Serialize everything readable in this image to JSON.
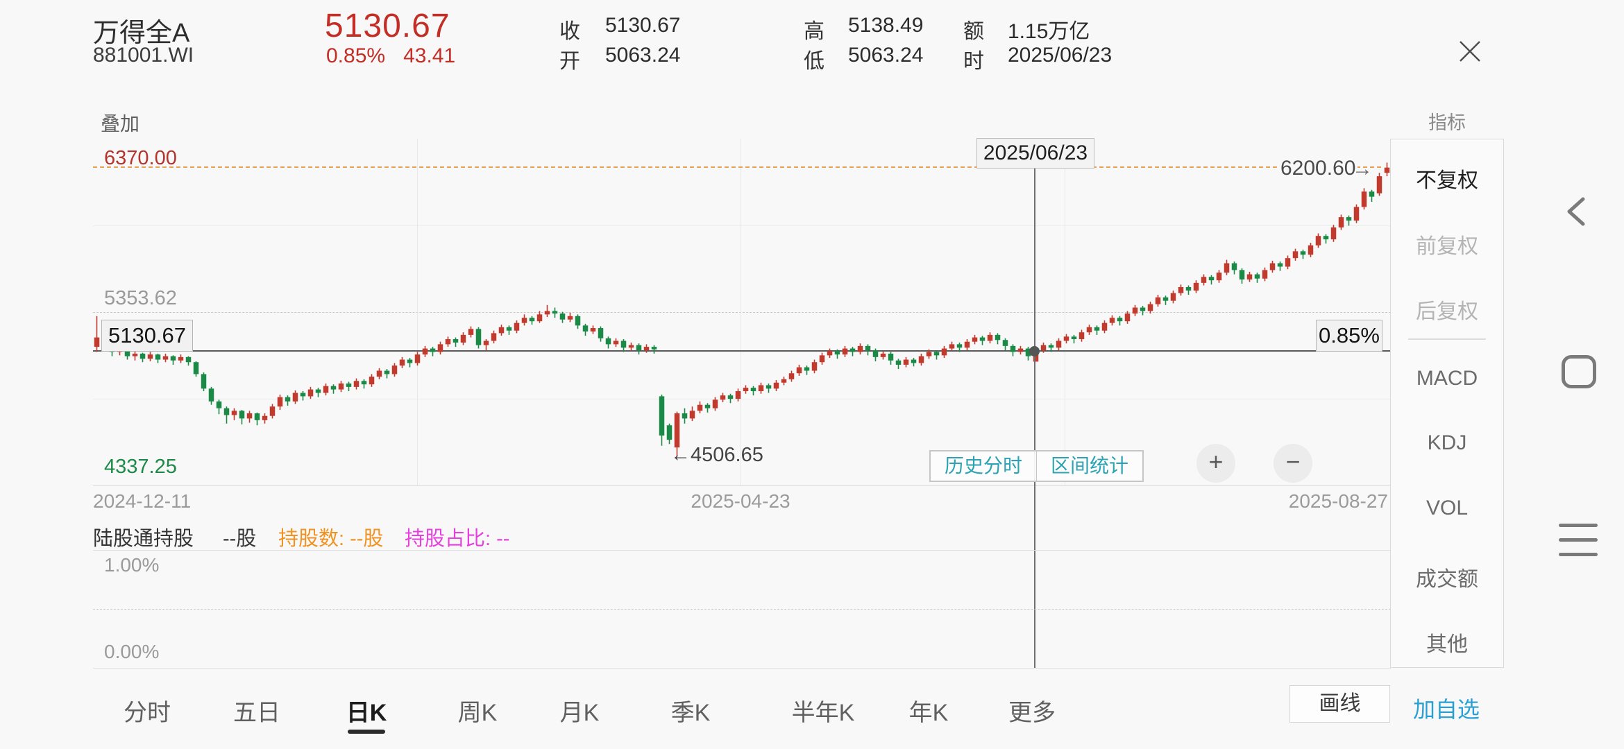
{
  "header": {
    "title": "万得全A",
    "code": "881001.WI",
    "price": "5130.67",
    "change_pct": "0.85%",
    "change_abs": "43.41",
    "stats": [
      {
        "label": "收",
        "value": "5130.67"
      },
      {
        "label": "开",
        "value": "5063.24"
      },
      {
        "label": "高",
        "value": "5138.49"
      },
      {
        "label": "低",
        "value": "5063.24"
      },
      {
        "label": "额",
        "value": "1.15万亿"
      },
      {
        "label": "时",
        "value": "2025/06/23"
      }
    ],
    "close_icon": "close-x"
  },
  "chart": {
    "overlay_button": "叠加",
    "y_axis_top": "6370.00",
    "y_axis_mid": "5353.62",
    "y_axis_bottom": "4337.25",
    "x_dates": [
      "2024-12-11",
      "2025-04-23",
      "2025-08-27"
    ],
    "crosshair_date": "2025/06/23",
    "crosshair_price": "5130.67",
    "crosshair_pct": "0.85%",
    "latest_price": "6200.60",
    "latest_arrow": "→",
    "low_annotation": "←4506.65",
    "history_btn": "历史分时",
    "range_btn": "区间统计",
    "zoom_in": "+",
    "zoom_out": "−"
  },
  "holdings": {
    "name": "陆股通持股",
    "shares": "--股",
    "count": "持股数: --股",
    "ratio": "持股占比: --",
    "y_top": "1.00%",
    "y_bottom": "0.00%"
  },
  "tabs": {
    "items": [
      "分时",
      "五日",
      "日K",
      "周K",
      "月K",
      "季K",
      "半年K",
      "年K",
      "更多"
    ],
    "active": "日K",
    "draw_label": "画线",
    "add_watch_label": "加自选"
  },
  "sidebar": {
    "header": "指标",
    "adjust_items": [
      "不复权",
      "前复权",
      "后复权"
    ],
    "active_adjust": "不复权",
    "indicator_items": [
      "MACD",
      "KDJ",
      "VOL",
      "成交额",
      "其他"
    ]
  },
  "colors": {
    "up": "#c03a2e",
    "down": "#1b8a47",
    "accent_teal": "#2ba3b3",
    "accent_blue": "#2aa0d2",
    "holdings_orange": "#ef9222",
    "holdings_magenta": "#e540dd",
    "latest_line_orange": "#e9a052",
    "price_red": "#c32f27"
  },
  "chart_data": {
    "type": "candlestick",
    "title": "万得全A 881001.WI 日K 不复权",
    "y_axis": {
      "max": 6370.0,
      "mid": 5353.62,
      "min": 4337.25
    },
    "x_labels": [
      "2024-12-11",
      "2025-04-23",
      "2025-08-27"
    ],
    "current_price_line": 5130.67,
    "latest_price_line": 6200.6,
    "low_annotation": {
      "value": 4506.65,
      "candle_index": 76
    },
    "crosshair": {
      "date": "2025/06/23",
      "candle_index": 123,
      "open": 5063.24,
      "high": 5138.49,
      "low": 5063.24,
      "close": 5130.67,
      "change_pct": 0.85,
      "change_abs": 43.41,
      "amount": "1.15万亿"
    },
    "grid": {
      "h_solid": [
        5861.81,
        4845.44
      ],
      "h_dashed": [
        5353.62
      ],
      "v_count": 3
    },
    "legend_position": "none",
    "candles_format": [
      "open",
      "close",
      "low",
      "high"
    ],
    "candles": [
      [
        5150,
        5205,
        5120,
        5330
      ],
      [
        5205,
        5150,
        5130,
        5215
      ],
      [
        5150,
        5120,
        5095,
        5160
      ],
      [
        5120,
        5140,
        5100,
        5155
      ],
      [
        5140,
        5095,
        5075,
        5145
      ],
      [
        5095,
        5110,
        5070,
        5125
      ],
      [
        5110,
        5080,
        5060,
        5115
      ],
      [
        5080,
        5105,
        5065,
        5120
      ],
      [
        5105,
        5075,
        5055,
        5110
      ],
      [
        5075,
        5095,
        5060,
        5110
      ],
      [
        5095,
        5070,
        5045,
        5100
      ],
      [
        5070,
        5090,
        5055,
        5105
      ],
      [
        5090,
        5060,
        5040,
        5095
      ],
      [
        5060,
        4990,
        4975,
        5065
      ],
      [
        4990,
        4905,
        4890,
        5000
      ],
      [
        4905,
        4830,
        4810,
        4915
      ],
      [
        4830,
        4790,
        4755,
        4840
      ],
      [
        4790,
        4750,
        4700,
        4800
      ],
      [
        4750,
        4775,
        4720,
        4790
      ],
      [
        4775,
        4730,
        4695,
        4780
      ],
      [
        4730,
        4760,
        4705,
        4775
      ],
      [
        4760,
        4720,
        4690,
        4765
      ],
      [
        4720,
        4745,
        4700,
        4760
      ],
      [
        4745,
        4800,
        4730,
        4815
      ],
      [
        4800,
        4855,
        4780,
        4870
      ],
      [
        4855,
        4830,
        4805,
        4865
      ],
      [
        4830,
        4880,
        4815,
        4895
      ],
      [
        4880,
        4860,
        4835,
        4890
      ],
      [
        4860,
        4900,
        4845,
        4915
      ],
      [
        4900,
        4880,
        4855,
        4910
      ],
      [
        4880,
        4920,
        4865,
        4935
      ],
      [
        4920,
        4900,
        4875,
        4930
      ],
      [
        4900,
        4935,
        4885,
        4950
      ],
      [
        4935,
        4915,
        4890,
        4945
      ],
      [
        4915,
        4950,
        4900,
        4965
      ],
      [
        4950,
        4930,
        4905,
        4960
      ],
      [
        4930,
        4975,
        4915,
        4990
      ],
      [
        4975,
        5010,
        4960,
        5025
      ],
      [
        5010,
        4990,
        4965,
        5020
      ],
      [
        4990,
        5040,
        4975,
        5055
      ],
      [
        5040,
        5075,
        5025,
        5090
      ],
      [
        5075,
        5055,
        5030,
        5085
      ],
      [
        5055,
        5105,
        5040,
        5120
      ],
      [
        5105,
        5140,
        5090,
        5155
      ],
      [
        5140,
        5120,
        5095,
        5150
      ],
      [
        5120,
        5165,
        5105,
        5180
      ],
      [
        5165,
        5195,
        5150,
        5210
      ],
      [
        5195,
        5175,
        5150,
        5205
      ],
      [
        5175,
        5220,
        5160,
        5235
      ],
      [
        5220,
        5255,
        5205,
        5270
      ],
      [
        5255,
        5160,
        5140,
        5265
      ],
      [
        5160,
        5185,
        5130,
        5195
      ],
      [
        5185,
        5230,
        5170,
        5245
      ],
      [
        5230,
        5265,
        5215,
        5280
      ],
      [
        5265,
        5245,
        5220,
        5275
      ],
      [
        5245,
        5290,
        5230,
        5305
      ],
      [
        5290,
        5320,
        5275,
        5340
      ],
      [
        5320,
        5300,
        5280,
        5330
      ],
      [
        5300,
        5340,
        5290,
        5360
      ],
      [
        5340,
        5360,
        5325,
        5395
      ],
      [
        5360,
        5345,
        5320,
        5380
      ],
      [
        5345,
        5310,
        5290,
        5355
      ],
      [
        5310,
        5330,
        5295,
        5350
      ],
      [
        5330,
        5275,
        5255,
        5340
      ],
      [
        5275,
        5240,
        5215,
        5285
      ],
      [
        5240,
        5260,
        5225,
        5275
      ],
      [
        5260,
        5200,
        5180,
        5270
      ],
      [
        5200,
        5165,
        5140,
        5210
      ],
      [
        5165,
        5185,
        5150,
        5200
      ],
      [
        5185,
        5145,
        5120,
        5195
      ],
      [
        5145,
        5160,
        5125,
        5175
      ],
      [
        5160,
        5130,
        5105,
        5170
      ],
      [
        5130,
        5150,
        5115,
        5165
      ],
      [
        5150,
        5135,
        5110,
        5160
      ],
      [
        4860,
        4630,
        4570,
        4870
      ],
      [
        4690,
        4605,
        4580,
        4700
      ],
      [
        4560,
        4760,
        4506.65,
        4770
      ],
      [
        4760,
        4730,
        4700,
        4790
      ],
      [
        4730,
        4775,
        4715,
        4800
      ],
      [
        4775,
        4810,
        4760,
        4830
      ],
      [
        4810,
        4790,
        4765,
        4820
      ],
      [
        4790,
        4840,
        4775,
        4855
      ],
      [
        4840,
        4865,
        4825,
        4880
      ],
      [
        4865,
        4845,
        4820,
        4875
      ],
      [
        4845,
        4890,
        4830,
        4905
      ],
      [
        4890,
        4910,
        4875,
        4925
      ],
      [
        4910,
        4890,
        4865,
        4920
      ],
      [
        4890,
        4925,
        4875,
        4940
      ],
      [
        4925,
        4905,
        4880,
        4935
      ],
      [
        4905,
        4940,
        4890,
        4955
      ],
      [
        4940,
        4960,
        4925,
        4975
      ],
      [
        4960,
        4995,
        4945,
        5010
      ],
      [
        4995,
        5030,
        4980,
        5045
      ],
      [
        5030,
        5010,
        4985,
        5040
      ],
      [
        5010,
        5060,
        4995,
        5075
      ],
      [
        5060,
        5100,
        5045,
        5115
      ],
      [
        5100,
        5125,
        5085,
        5140
      ],
      [
        5125,
        5105,
        5080,
        5135
      ],
      [
        5105,
        5140,
        5090,
        5155
      ],
      [
        5140,
        5120,
        5095,
        5150
      ],
      [
        5120,
        5155,
        5105,
        5170
      ],
      [
        5155,
        5130,
        5100,
        5165
      ],
      [
        5130,
        5090,
        5065,
        5140
      ],
      [
        5090,
        5110,
        5075,
        5125
      ],
      [
        5110,
        5070,
        5045,
        5120
      ],
      [
        5070,
        5045,
        5020,
        5080
      ],
      [
        5045,
        5075,
        5030,
        5090
      ],
      [
        5075,
        5055,
        5035,
        5085
      ],
      [
        5055,
        5095,
        5040,
        5110
      ],
      [
        5095,
        5120,
        5080,
        5135
      ],
      [
        5120,
        5100,
        5075,
        5130
      ],
      [
        5100,
        5140,
        5085,
        5155
      ],
      [
        5140,
        5165,
        5125,
        5180
      ],
      [
        5165,
        5145,
        5120,
        5175
      ],
      [
        5145,
        5180,
        5130,
        5195
      ],
      [
        5180,
        5205,
        5165,
        5220
      ],
      [
        5205,
        5185,
        5160,
        5215
      ],
      [
        5185,
        5220,
        5170,
        5235
      ],
      [
        5220,
        5190,
        5165,
        5230
      ],
      [
        5190,
        5155,
        5130,
        5200
      ],
      [
        5155,
        5120,
        5095,
        5165
      ],
      [
        5120,
        5140,
        5105,
        5155
      ],
      [
        5140,
        5095,
        5070,
        5150
      ],
      [
        5063.24,
        5130.67,
        5063.24,
        5138.49
      ],
      [
        5130,
        5160,
        5115,
        5175
      ],
      [
        5160,
        5145,
        5120,
        5170
      ],
      [
        5145,
        5185,
        5130,
        5200
      ],
      [
        5185,
        5210,
        5170,
        5225
      ],
      [
        5210,
        5195,
        5170,
        5220
      ],
      [
        5195,
        5235,
        5180,
        5250
      ],
      [
        5235,
        5265,
        5220,
        5280
      ],
      [
        5265,
        5245,
        5220,
        5275
      ],
      [
        5245,
        5290,
        5230,
        5305
      ],
      [
        5290,
        5320,
        5275,
        5335
      ],
      [
        5320,
        5300,
        5275,
        5330
      ],
      [
        5300,
        5345,
        5285,
        5360
      ],
      [
        5345,
        5380,
        5330,
        5395
      ],
      [
        5380,
        5360,
        5335,
        5390
      ],
      [
        5360,
        5400,
        5345,
        5415
      ],
      [
        5400,
        5440,
        5385,
        5455
      ],
      [
        5440,
        5420,
        5395,
        5450
      ],
      [
        5420,
        5465,
        5405,
        5480
      ],
      [
        5465,
        5500,
        5450,
        5515
      ],
      [
        5500,
        5480,
        5455,
        5510
      ],
      [
        5480,
        5525,
        5465,
        5540
      ],
      [
        5525,
        5560,
        5510,
        5575
      ],
      [
        5560,
        5540,
        5515,
        5570
      ],
      [
        5540,
        5585,
        5525,
        5600
      ],
      [
        5585,
        5640,
        5570,
        5660
      ],
      [
        5640,
        5600,
        5575,
        5650
      ],
      [
        5600,
        5545,
        5520,
        5610
      ],
      [
        5545,
        5575,
        5530,
        5590
      ],
      [
        5575,
        5550,
        5525,
        5585
      ],
      [
        5550,
        5600,
        5535,
        5615
      ],
      [
        5600,
        5640,
        5585,
        5655
      ],
      [
        5640,
        5620,
        5595,
        5650
      ],
      [
        5620,
        5670,
        5605,
        5685
      ],
      [
        5670,
        5710,
        5655,
        5725
      ],
      [
        5710,
        5690,
        5665,
        5720
      ],
      [
        5690,
        5745,
        5675,
        5760
      ],
      [
        5745,
        5800,
        5730,
        5815
      ],
      [
        5800,
        5780,
        5755,
        5810
      ],
      [
        5780,
        5850,
        5765,
        5865
      ],
      [
        5850,
        5910,
        5835,
        5925
      ],
      [
        5910,
        5890,
        5860,
        5920
      ],
      [
        5890,
        5970,
        5875,
        5985
      ],
      [
        5970,
        6060,
        5955,
        6080
      ],
      [
        6060,
        6030,
        6000,
        6070
      ],
      [
        6050,
        6150,
        6035,
        6170
      ],
      [
        6170,
        6200.6,
        6150,
        6230
      ]
    ],
    "holdings_subchart": {
      "type": "line",
      "series_name": "陆股通持股占比",
      "values": null,
      "y_tick_labels": [
        "1.00%",
        "0.00%"
      ],
      "note": "no data (--)"
    }
  }
}
